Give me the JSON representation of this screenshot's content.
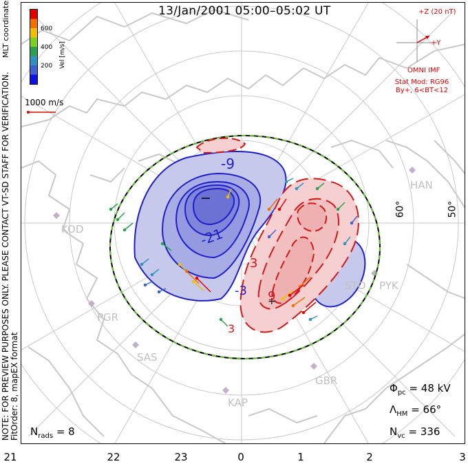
{
  "title": "13/Jan/2001 05:00–05:02 UT",
  "side_note": {
    "line1": "NOTE: FOR PREVIEW PURPOSES ONLY. PLEASE CONTACT VT-SD STAFF FOR VERIFICATION.",
    "line2": "FitOrder: 8, mapEX format"
  },
  "colorbar": {
    "title": "Vel [m/s]",
    "ticks": [
      "600",
      "400",
      "200"
    ],
    "colors": [
      "#e00000",
      "#f07000",
      "#f0c000",
      "#7fd020",
      "#2aa050",
      "#3090c0",
      "#4060d0",
      "#1010e0"
    ],
    "coords_label": "MLT coordinates"
  },
  "scale_vector": {
    "label": "1000 m/s",
    "color": "#e00000"
  },
  "imf": {
    "bz_label": "+Z (20 nT)",
    "by_label": "+Y",
    "source_label": "OMNI IMF",
    "stat_model": "Stat Mod: RG96",
    "stat_condition": "By+, 6<BT<12"
  },
  "station_labels": [
    "HAN",
    "KOD",
    "PGR",
    "SAS",
    "STO",
    "PYK",
    "GBR",
    "KAP"
  ],
  "latitude_labels": [
    "60°",
    "50°"
  ],
  "contour_labels": [
    "-9",
    "-21",
    "-3",
    "3",
    "9",
    "3"
  ],
  "params": {
    "pcp_symbol": "Φ",
    "pcp_sub": "pc",
    "pcp_value": "= 48 kV",
    "hm_symbol": "Λ",
    "hm_sub": "HM",
    "hm_value": "= 66°",
    "nvc_symbol": "N",
    "nvc_sub": "vc",
    "nvc_value": "= 336",
    "nrads_symbol": "N",
    "nrads_sub": "rads",
    "nrads_value": "= 8"
  },
  "mlt_labels": [
    "21",
    "22",
    "23",
    "0",
    "1",
    "2",
    "3"
  ],
  "colors": {
    "negative_cell": "#1e1ec8",
    "negative_fill": "#b8bce8",
    "positive_cell": "#d01818",
    "positive_fill": "#f5c8c8",
    "land": "#c8c8c8",
    "grid": "#c8c8c8",
    "hm_boundary_dash": "#60c030"
  },
  "potential_extrema": {
    "min": -21,
    "max": 9
  }
}
